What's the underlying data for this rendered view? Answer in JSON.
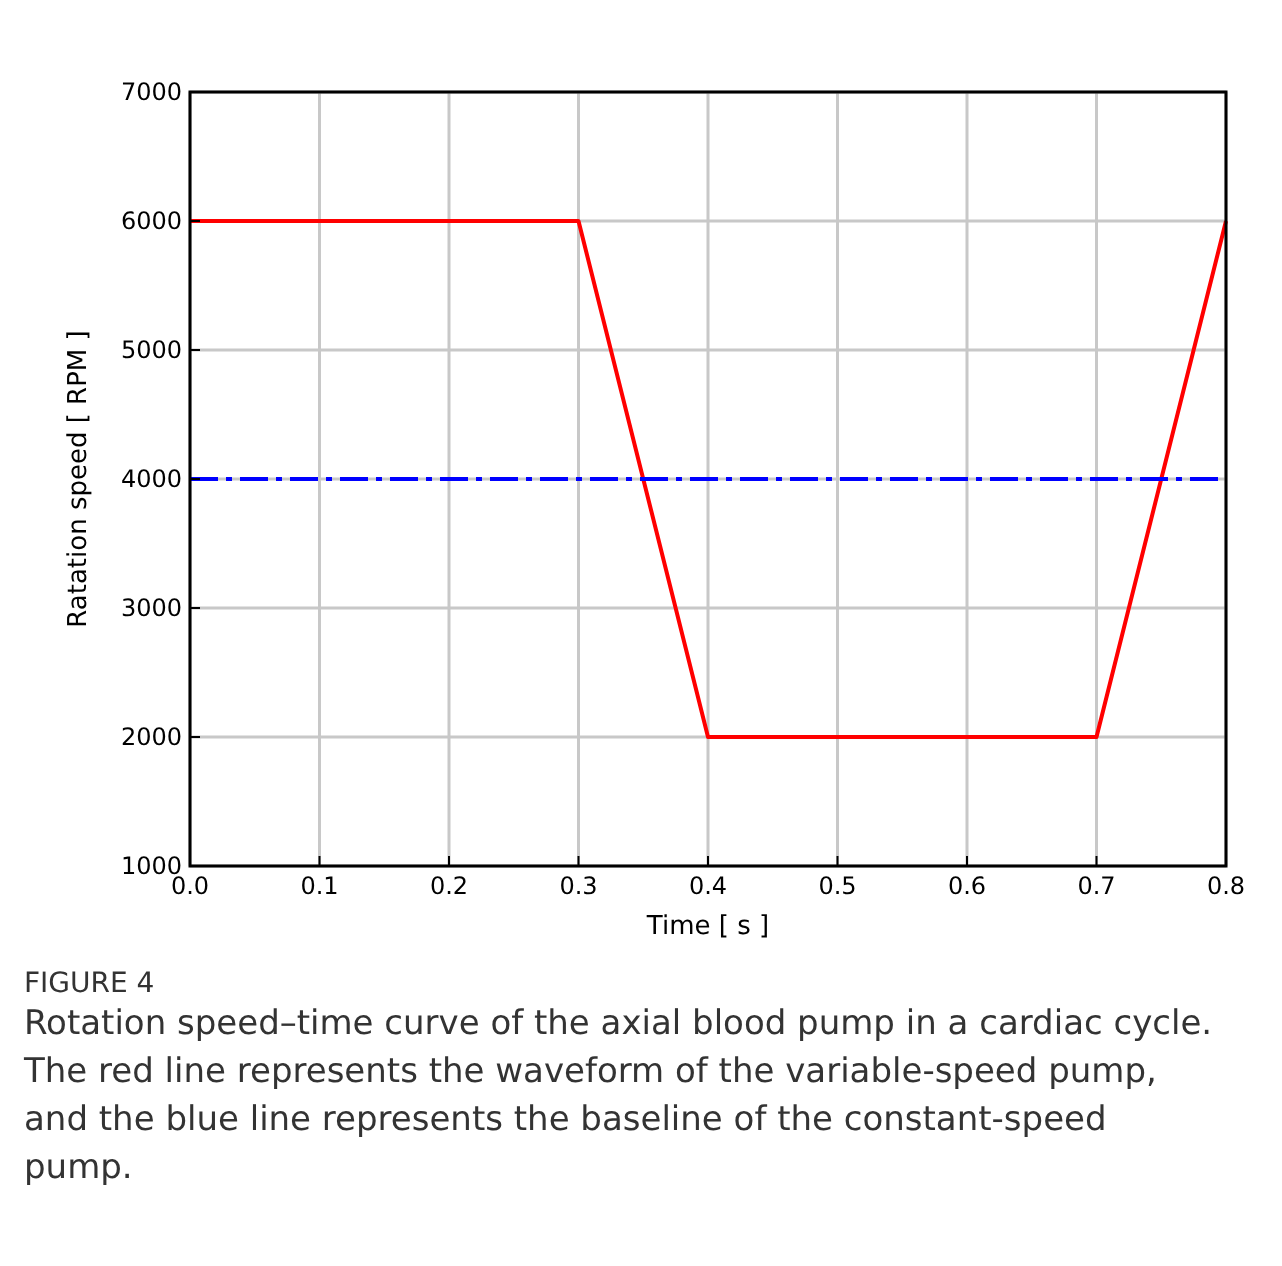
{
  "chart_data": {
    "type": "line",
    "xlabel": "Time [ s ]",
    "ylabel": "Ratation speed [ RPM ]",
    "xlim": [
      0,
      0.8
    ],
    "xticks": [
      {
        "value": 0,
        "label": "0.0"
      },
      0.1,
      0.2,
      0.3,
      0.4,
      0.5,
      0.6,
      0.7,
      0.8
    ],
    "ylim": [
      1000,
      7000
    ],
    "yticks": [
      1000,
      2000,
      3000,
      4000,
      5000,
      6000,
      7000
    ],
    "grid": true,
    "series": [
      {
        "color": "#ff0000",
        "x": [
          0,
          0.3,
          0.4,
          0.7,
          0.8
        ],
        "values": [
          6000,
          6000,
          2000,
          2000,
          6000
        ],
        "line_style": "solid"
      },
      {
        "color": "#0000ff",
        "x": [
          0,
          0.8
        ],
        "values": [
          4000,
          4000
        ],
        "line_style": "dashed"
      }
    ],
    "annotations": [
      "FIGURE 4",
      "Rotation speed–time curve of the axial blood pump in a cardiac cycle. The red line represents the waveform of the variable-speed pump, and the blue line represents the baseline of the constant-speed pump."
    ]
  }
}
